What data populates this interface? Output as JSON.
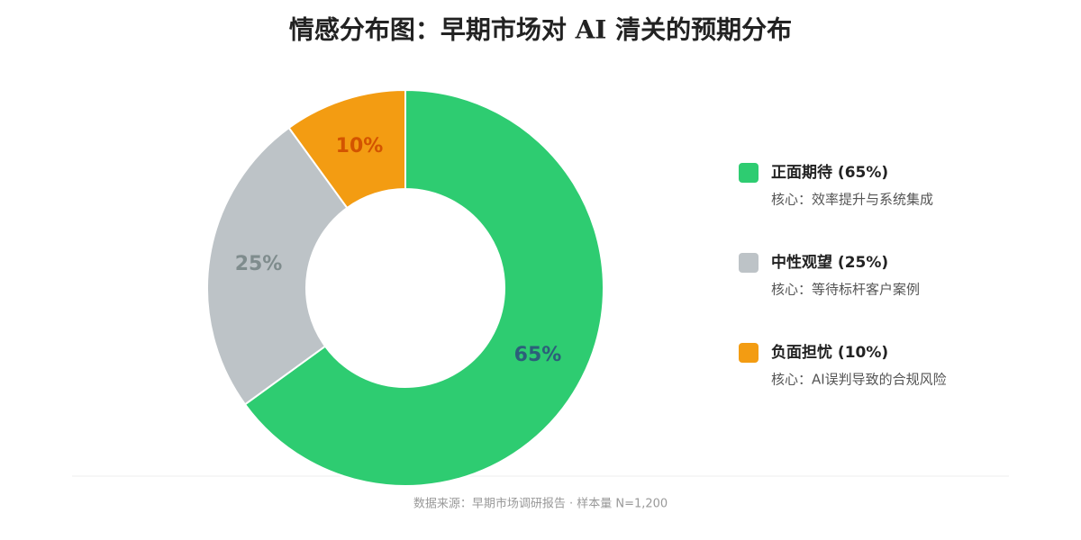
{
  "chart_data": {
    "type": "donut",
    "title": "情感分布图：早期市场对 AI 清关的预期分布",
    "categories": [
      "正面期待",
      "中性观望",
      "负面担忧"
    ],
    "values": [
      65,
      25,
      10
    ],
    "value_labels": [
      "65%",
      "25%",
      "10%"
    ],
    "colors": [
      "#2ecc71",
      "#bdc3c7",
      "#f39c12"
    ],
    "label_colors": [
      "#2c5f7a",
      "#7f8c8d",
      "#d35400"
    ],
    "legend_labels": [
      "正面期待 (65%)",
      "中性观望 (25%)",
      "负面担忧 (10%)"
    ],
    "legend_notes": [
      "核心：效率提升与系统集成",
      "核心：等待标杆客户案例",
      "核心：AI误判导致的合规风险"
    ],
    "legend_position": "right",
    "source": "数据来源：早期市场调研报告 · 样本量 N=1,200"
  }
}
